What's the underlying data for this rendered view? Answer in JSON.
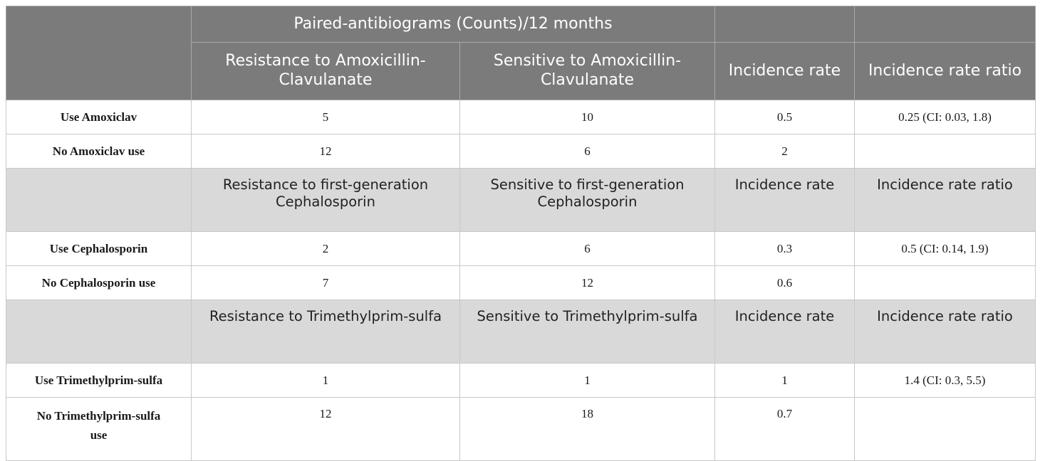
{
  "header": {
    "group_title": "Paired-antibiograms (Counts)/12 months",
    "columns": [
      "Resistance to Amoxicillin-Clavulanate",
      "Sensitive to Amoxicillin-Clavulanate",
      "Incidence rate",
      "Incidence rate ratio"
    ]
  },
  "sections": [
    {
      "rows": [
        {
          "label": "Use Amoxiclav",
          "resistant": "5",
          "sensitive": "10",
          "incidence_rate": "0.5",
          "incidence_rate_ratio": "0.25 (CI: 0.03, 1.8)"
        },
        {
          "label": "No Amoxiclav use",
          "resistant": "12",
          "sensitive": "6",
          "incidence_rate": "2",
          "incidence_rate_ratio": ""
        }
      ]
    },
    {
      "subheader": {
        "resistant": "Resistance to first-generation Cephalosporin",
        "sensitive": "Sensitive to first-generation Cephalosporin",
        "incidence_rate": "Incidence rate",
        "incidence_rate_ratio": "Incidence rate ratio"
      },
      "rows": [
        {
          "label": "Use Cephalosporin",
          "resistant": "2",
          "sensitive": "6",
          "incidence_rate": "0.3",
          "incidence_rate_ratio": "0.5 (CI: 0.14, 1.9)"
        },
        {
          "label": "No Cephalosporin use",
          "resistant": "7",
          "sensitive": "12",
          "incidence_rate": "0.6",
          "incidence_rate_ratio": ""
        }
      ]
    },
    {
      "subheader": {
        "resistant": "Resistance to Trimethylprim-sulfa",
        "sensitive": "Sensitive to Trimethylprim-sulfa",
        "incidence_rate": "Incidence rate",
        "incidence_rate_ratio": "Incidence rate ratio"
      },
      "rows": [
        {
          "label": "Use Trimethylprim-sulfa",
          "resistant": "1",
          "sensitive": "1",
          "incidence_rate": "1",
          "incidence_rate_ratio": "1.4 (CI: 0.3, 5.5)"
        },
        {
          "label": "No Trimethylprim-sulfa use",
          "resistant": "12",
          "sensitive": "18",
          "incidence_rate": "0.7",
          "incidence_rate_ratio": ""
        }
      ]
    }
  ]
}
